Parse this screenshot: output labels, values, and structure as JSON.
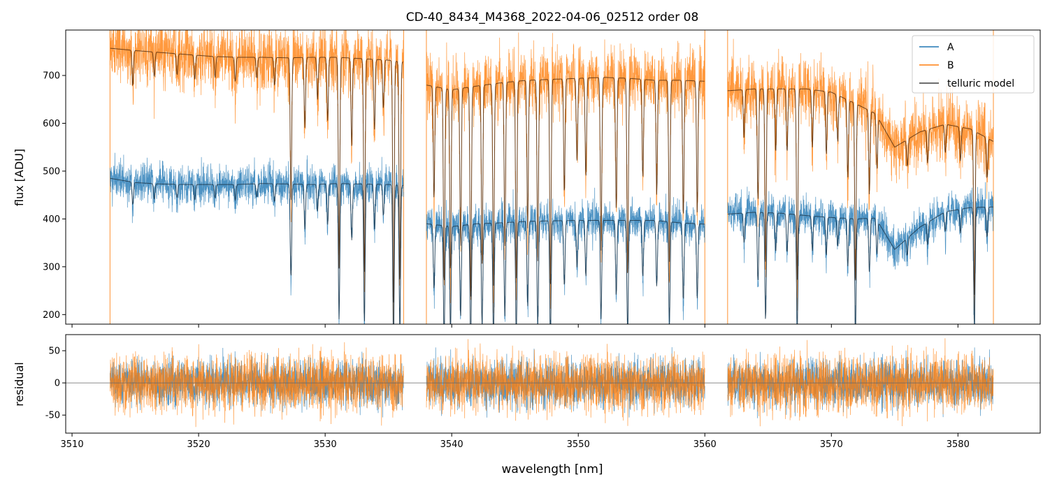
{
  "chart_data": {
    "title": "CD-40_8434_M4368_2022-04-06_02512  order 08",
    "xlabel": "wavelength [nm]",
    "xlim": [
      3509.5,
      3586.5
    ],
    "x_ticks": [
      3510,
      3520,
      3530,
      3540,
      3550,
      3560,
      3570,
      3580
    ],
    "legend_position": "top-right",
    "colors": {
      "A": "#1f77b4",
      "B": "#ff7f0e",
      "model": "#3d3d3d",
      "zero_line": "#666666"
    },
    "panels": [
      {
        "id": "flux",
        "type": "line",
        "ylabel": "flux [ADU]",
        "ylim": [
          180,
          795
        ],
        "y_ticks": [
          200,
          300,
          400,
          500,
          600,
          700
        ],
        "segments": [
          [
            3513.0,
            3536.2
          ],
          [
            3538.0,
            3560.0
          ],
          [
            3561.8,
            3582.8
          ]
        ],
        "series": [
          {
            "name": "A",
            "continuum": {
              "x": [
                3513,
                3515,
                3517,
                3519,
                3521,
                3523,
                3525,
                3527,
                3529,
                3531,
                3533,
                3535,
                3536.2,
                3538,
                3540,
                3542,
                3544,
                3546,
                3548,
                3550,
                3552,
                3554,
                3556,
                3558,
                3560,
                3561.8,
                3564,
                3566,
                3568,
                3570,
                3572,
                3573.5,
                3575,
                3577,
                3579,
                3581,
                3582.8
              ],
              "y": [
                485,
                476,
                473,
                472,
                472,
                472,
                474,
                473,
                472,
                474,
                473,
                472,
                470,
                390,
                384,
                390,
                392,
                395,
                396,
                397,
                397,
                397,
                397,
                392,
                389,
                410,
                414,
                412,
                407,
                403,
                400,
                402,
                336,
                383,
                415,
                424,
                425
              ]
            },
            "noise_amplitude": 28
          },
          {
            "name": "B",
            "continuum": {
              "x": [
                3513,
                3515,
                3517,
                3519,
                3521,
                3523,
                3525,
                3527,
                3529,
                3531,
                3533,
                3535,
                3536.2,
                3538,
                3540,
                3542,
                3544,
                3546,
                3548,
                3550,
                3552,
                3554,
                3556,
                3558,
                3560,
                3561.8,
                3564,
                3566,
                3568,
                3570,
                3572,
                3573.5,
                3575,
                3577,
                3579,
                3581,
                3582.8
              ],
              "y": [
                757,
                752,
                748,
                744,
                740,
                738,
                738,
                737,
                738,
                738,
                735,
                732,
                728,
                680,
                670,
                678,
                685,
                690,
                692,
                694,
                696,
                694,
                690,
                690,
                688,
                668,
                672,
                672,
                672,
                665,
                640,
                620,
                550,
                582,
                598,
                588,
                562
              ]
            },
            "noise_amplitude": 48
          },
          {
            "name": "telluric model",
            "absorption_lines": [
              {
                "x": 3514.8,
                "depth": 0.1
              },
              {
                "x": 3516.5,
                "depth": 0.07
              },
              {
                "x": 3518.3,
                "depth": 0.06
              },
              {
                "x": 3519.7,
                "depth": 0.07
              },
              {
                "x": 3521.3,
                "depth": 0.06
              },
              {
                "x": 3522.9,
                "depth": 0.07
              },
              {
                "x": 3524.6,
                "depth": 0.06
              },
              {
                "x": 3526.0,
                "depth": 0.08
              },
              {
                "x": 3527.3,
                "depth": 0.42
              },
              {
                "x": 3528.4,
                "depth": 0.2
              },
              {
                "x": 3529.4,
                "depth": 0.12
              },
              {
                "x": 3530.2,
                "depth": 0.18
              },
              {
                "x": 3531.1,
                "depth": 0.6
              },
              {
                "x": 3532.1,
                "depth": 0.25
              },
              {
                "x": 3533.1,
                "depth": 0.62
              },
              {
                "x": 3533.9,
                "depth": 0.2
              },
              {
                "x": 3534.6,
                "depth": 0.14
              },
              {
                "x": 3535.4,
                "depth": 0.72
              },
              {
                "x": 3535.9,
                "depth": 0.65
              },
              {
                "x": 3538.6,
                "depth": 0.35
              },
              {
                "x": 3539.4,
                "depth": 0.62
              },
              {
                "x": 3539.9,
                "depth": 0.58
              },
              {
                "x": 3540.7,
                "depth": 0.5
              },
              {
                "x": 3541.5,
                "depth": 0.65
              },
              {
                "x": 3542.4,
                "depth": 0.55
              },
              {
                "x": 3543.3,
                "depth": 0.62
              },
              {
                "x": 3544.2,
                "depth": 0.5
              },
              {
                "x": 3545.1,
                "depth": 0.6
              },
              {
                "x": 3546.0,
                "depth": 0.45
              },
              {
                "x": 3546.8,
                "depth": 0.55
              },
              {
                "x": 3547.8,
                "depth": 0.62
              },
              {
                "x": 3548.9,
                "depth": 0.35
              },
              {
                "x": 3549.9,
                "depth": 0.25
              },
              {
                "x": 3550.6,
                "depth": 0.3
              },
              {
                "x": 3551.8,
                "depth": 0.52
              },
              {
                "x": 3553.0,
                "depth": 0.4
              },
              {
                "x": 3553.9,
                "depth": 0.6
              },
              {
                "x": 3555.1,
                "depth": 0.3
              },
              {
                "x": 3556.2,
                "depth": 0.35
              },
              {
                "x": 3557.2,
                "depth": 0.55
              },
              {
                "x": 3558.3,
                "depth": 0.42
              },
              {
                "x": 3559.4,
                "depth": 0.4
              },
              {
                "x": 3563.1,
                "depth": 0.15
              },
              {
                "x": 3564.2,
                "depth": 0.35
              },
              {
                "x": 3564.8,
                "depth": 0.55
              },
              {
                "x": 3565.6,
                "depth": 0.2
              },
              {
                "x": 3566.5,
                "depth": 0.2
              },
              {
                "x": 3567.3,
                "depth": 0.6
              },
              {
                "x": 3568.5,
                "depth": 0.18
              },
              {
                "x": 3569.6,
                "depth": 0.2
              },
              {
                "x": 3570.5,
                "depth": 0.15
              },
              {
                "x": 3571.3,
                "depth": 0.25
              },
              {
                "x": 3571.9,
                "depth": 0.6
              },
              {
                "x": 3573.0,
                "depth": 0.28
              },
              {
                "x": 3573.6,
                "depth": 0.18
              },
              {
                "x": 3576.0,
                "depth": 0.1
              },
              {
                "x": 3577.6,
                "depth": 0.12
              },
              {
                "x": 3579.0,
                "depth": 0.1
              },
              {
                "x": 3580.2,
                "depth": 0.12
              },
              {
                "x": 3581.3,
                "depth": 0.6
              },
              {
                "x": 3582.3,
                "depth": 0.15
              }
            ]
          }
        ],
        "edge_spikes": [
          3513.0,
          3536.2,
          3538.0,
          3560.0,
          3561.8,
          3582.8
        ]
      },
      {
        "id": "residual",
        "type": "line",
        "ylabel": "residual",
        "ylim": [
          -78,
          75
        ],
        "y_ticks": [
          -50,
          0,
          50
        ],
        "zero_line": true,
        "series": [
          {
            "name": "A",
            "noise_amplitude": 24
          },
          {
            "name": "B",
            "noise_amplitude": 30
          }
        ]
      }
    ]
  }
}
